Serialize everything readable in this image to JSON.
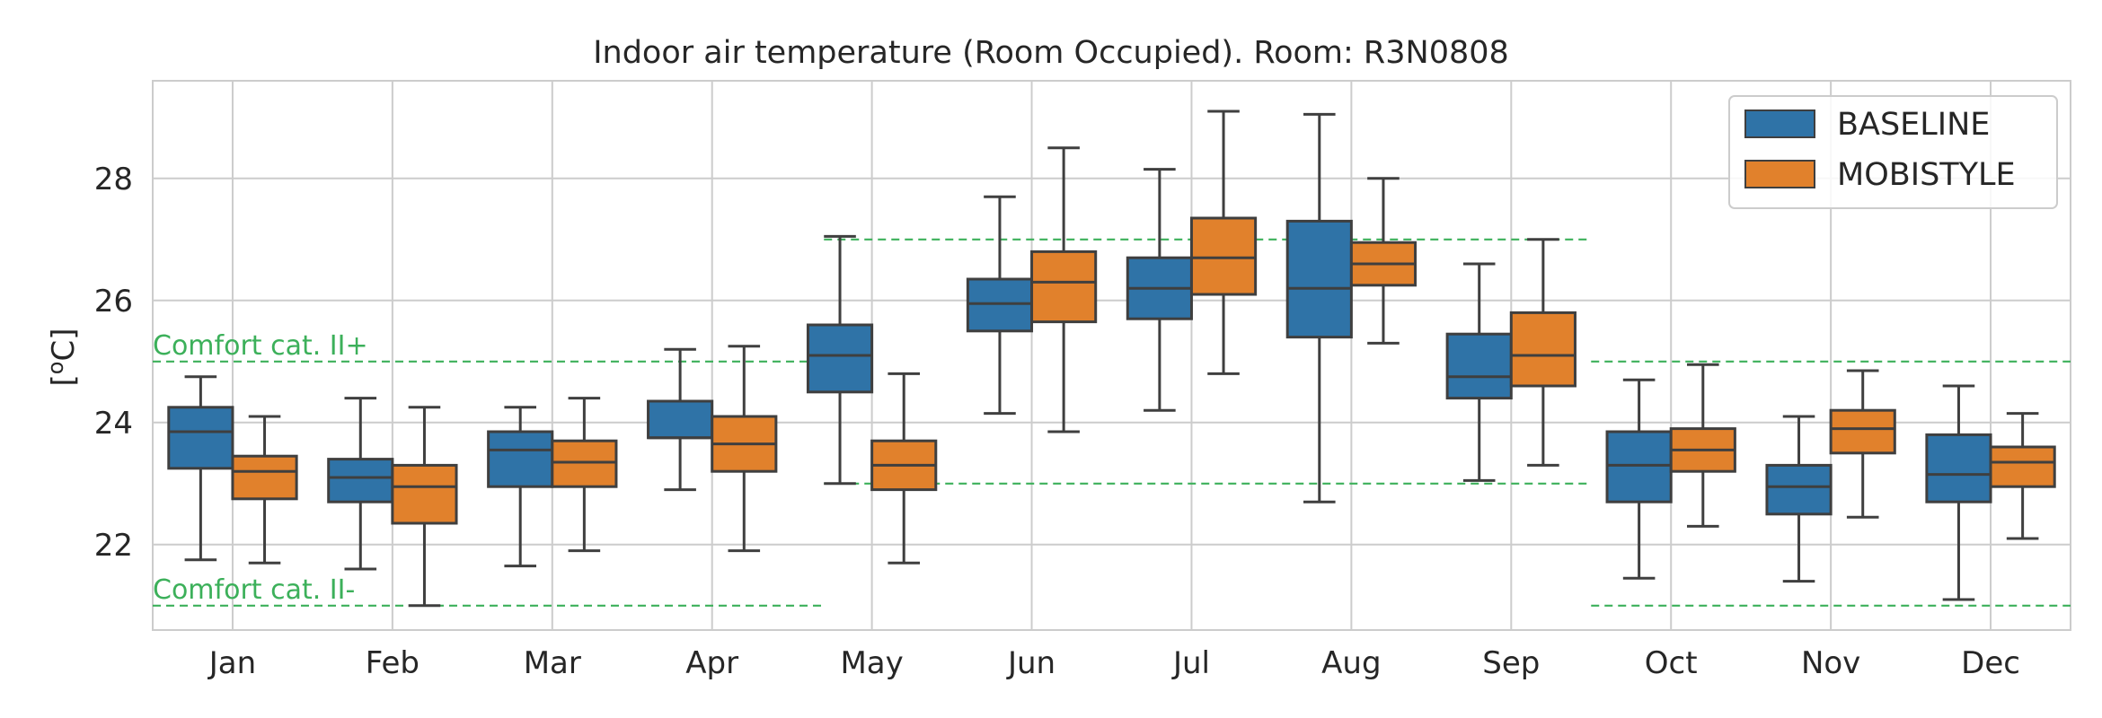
{
  "chart_data": {
    "type": "box",
    "title": "Indoor air temperature (Room Occupied). Room: R3N0808",
    "ylabel_main": "[",
    "ylabel_sup": "o",
    "ylabel_end": "C]",
    "ylim": [
      20.6,
      29.6
    ],
    "yticks": [
      "22",
      "24",
      "26",
      "28"
    ],
    "ytick_values": [
      22,
      24,
      26,
      28
    ],
    "grid": true,
    "legend_position": "top-right",
    "categories": [
      "Jan",
      "Feb",
      "Mar",
      "Apr",
      "May",
      "Jun",
      "Jul",
      "Aug",
      "Sep",
      "Oct",
      "Nov",
      "Dec"
    ],
    "series": [
      {
        "name": "BASELINE",
        "color": "#2f73a7",
        "boxes": [
          {
            "whislo": 21.75,
            "q1": 23.25,
            "med": 23.85,
            "q3": 24.25,
            "whishi": 24.75
          },
          {
            "whislo": 21.6,
            "q1": 22.7,
            "med": 23.1,
            "q3": 23.4,
            "whishi": 24.4
          },
          {
            "whislo": 21.65,
            "q1": 22.95,
            "med": 23.55,
            "q3": 23.85,
            "whishi": 24.25
          },
          {
            "whislo": 22.9,
            "q1": 23.75,
            "med": 23.75,
            "q3": 24.35,
            "whishi": 25.2
          },
          {
            "whislo": 23.0,
            "q1": 24.5,
            "med": 25.1,
            "q3": 25.6,
            "whishi": 27.05
          },
          {
            "whislo": 24.15,
            "q1": 25.5,
            "med": 25.95,
            "q3": 26.35,
            "whishi": 27.7
          },
          {
            "whislo": 24.2,
            "q1": 25.7,
            "med": 26.2,
            "q3": 26.7,
            "whishi": 28.15
          },
          {
            "whislo": 22.7,
            "q1": 25.4,
            "med": 26.2,
            "q3": 27.3,
            "whishi": 29.05
          },
          {
            "whislo": 23.05,
            "q1": 24.4,
            "med": 24.75,
            "q3": 25.45,
            "whishi": 26.6
          },
          {
            "whislo": 21.45,
            "q1": 22.7,
            "med": 23.3,
            "q3": 23.85,
            "whishi": 24.7
          },
          {
            "whislo": 21.4,
            "q1": 22.5,
            "med": 22.95,
            "q3": 23.3,
            "whishi": 24.1
          },
          {
            "whislo": 21.1,
            "q1": 22.7,
            "med": 23.15,
            "q3": 23.8,
            "whishi": 24.6
          }
        ]
      },
      {
        "name": "MOBISTYLE",
        "color": "#e1812c",
        "boxes": [
          {
            "whislo": 21.7,
            "q1": 22.75,
            "med": 23.2,
            "q3": 23.45,
            "whishi": 24.1
          },
          {
            "whislo": 21.0,
            "q1": 22.35,
            "med": 22.95,
            "q3": 23.3,
            "whishi": 24.25
          },
          {
            "whislo": 21.9,
            "q1": 22.95,
            "med": 23.35,
            "q3": 23.7,
            "whishi": 24.4
          },
          {
            "whislo": 21.9,
            "q1": 23.2,
            "med": 23.65,
            "q3": 24.1,
            "whishi": 25.25
          },
          {
            "whislo": 21.7,
            "q1": 22.9,
            "med": 23.3,
            "q3": 23.7,
            "whishi": 24.8
          },
          {
            "whislo": 23.85,
            "q1": 25.65,
            "med": 26.3,
            "q3": 26.8,
            "whishi": 28.5
          },
          {
            "whislo": 24.8,
            "q1": 26.1,
            "med": 26.7,
            "q3": 27.35,
            "whishi": 29.1
          },
          {
            "whislo": 25.3,
            "q1": 26.25,
            "med": 26.6,
            "q3": 26.95,
            "whishi": 28.0
          },
          {
            "whislo": 23.3,
            "q1": 24.6,
            "med": 25.1,
            "q3": 25.8,
            "whishi": 27.0
          },
          {
            "whislo": 22.3,
            "q1": 23.2,
            "med": 23.55,
            "q3": 23.9,
            "whishi": 24.95
          },
          {
            "whislo": 22.45,
            "q1": 23.5,
            "med": 23.9,
            "q3": 24.2,
            "whishi": 24.85
          },
          {
            "whislo": 22.1,
            "q1": 22.95,
            "med": 23.35,
            "q3": 23.6,
            "whishi": 24.15
          }
        ]
      }
    ],
    "comfort_lines": {
      "color": "#3cb05a",
      "upper_label": "Comfort cat. II+",
      "lower_label": "Comfort cat. II-",
      "upper_segments": [
        {
          "from_cat": -0.5,
          "to_cat": 3.7,
          "y": 25
        },
        {
          "from_cat": 3.7,
          "to_cat": 8.5,
          "y": 27
        },
        {
          "from_cat": 8.5,
          "to_cat": 11.5,
          "y": 25
        }
      ],
      "lower_segments": [
        {
          "from_cat": -0.5,
          "to_cat": 3.7,
          "y": 21
        },
        {
          "from_cat": 3.7,
          "to_cat": 8.5,
          "y": 23
        },
        {
          "from_cat": 8.5,
          "to_cat": 11.5,
          "y": 21
        }
      ]
    }
  }
}
